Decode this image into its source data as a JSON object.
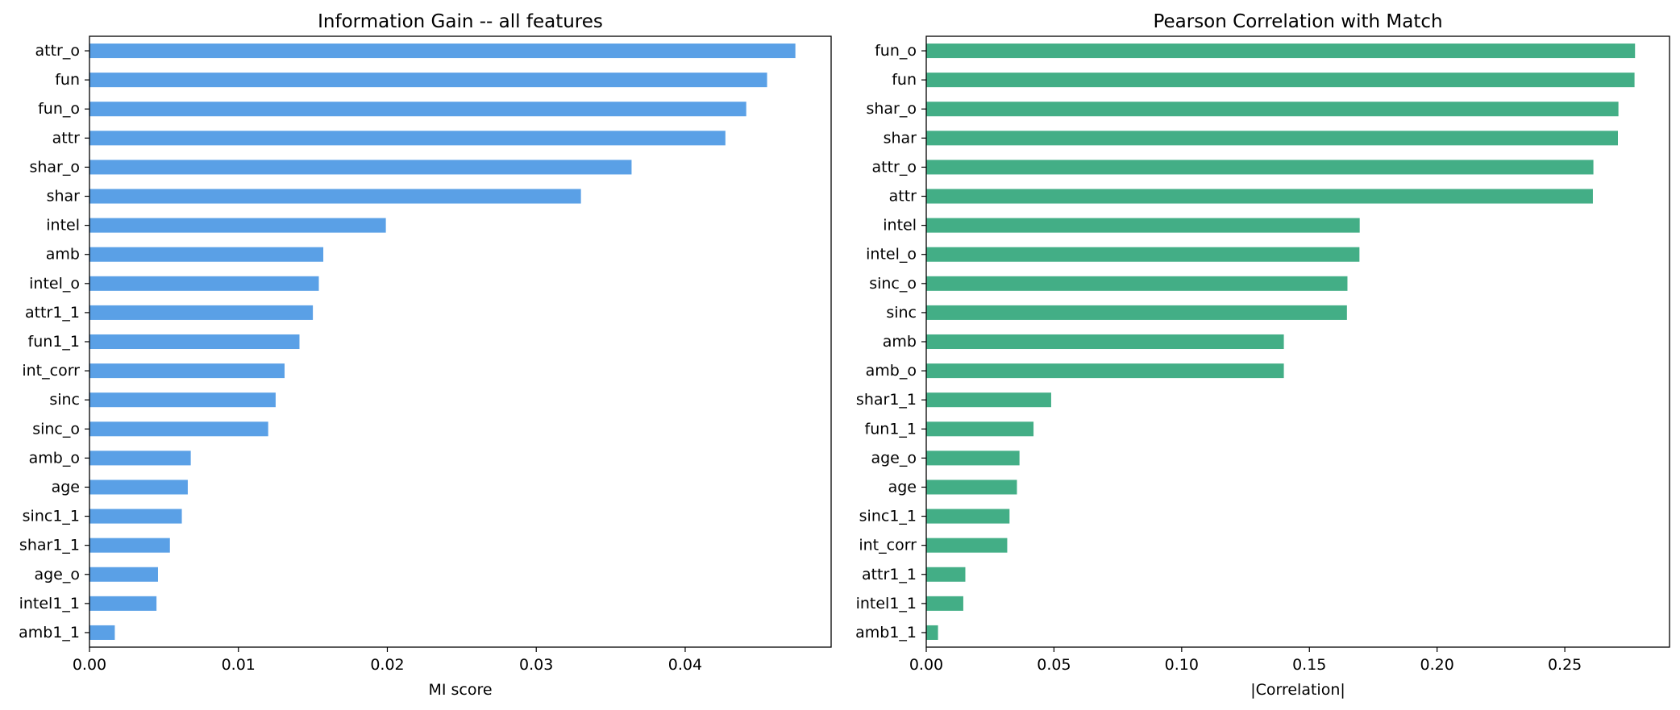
{
  "chart_data": [
    {
      "type": "bar",
      "orientation": "horizontal",
      "title": "Information Gain -- all features",
      "xlabel": "MI score",
      "ylabel": "",
      "color": "#5aa0e6",
      "xlim": [
        0,
        0.0498
      ],
      "xticks": [
        0.0,
        0.01,
        0.02,
        0.03,
        0.04
      ],
      "xtick_labels": [
        "0.00",
        "0.01",
        "0.02",
        "0.03",
        "0.04"
      ],
      "grid": false,
      "categories": [
        "attr_o",
        "fun",
        "fun_o",
        "attr",
        "shar_o",
        "shar",
        "intel",
        "amb",
        "intel_o",
        "attr1_1",
        "fun1_1",
        "int_corr",
        "sinc",
        "sinc_o",
        "amb_o",
        "age",
        "sinc1_1",
        "shar1_1",
        "age_o",
        "intel1_1",
        "amb1_1"
      ],
      "values": [
        0.0474,
        0.0455,
        0.0441,
        0.0427,
        0.0364,
        0.033,
        0.0199,
        0.0157,
        0.0154,
        0.015,
        0.0141,
        0.0131,
        0.0125,
        0.012,
        0.0068,
        0.0066,
        0.0062,
        0.0054,
        0.0046,
        0.0045,
        0.0017
      ]
    },
    {
      "type": "bar",
      "orientation": "horizontal",
      "title": "Pearson Correlation with Match",
      "xlabel": "|Correlation|",
      "ylabel": "",
      "color": "#43ae86",
      "xlim": [
        0,
        0.291
      ],
      "xticks": [
        0.0,
        0.05,
        0.1,
        0.15,
        0.2,
        0.25
      ],
      "xtick_labels": [
        "0.00",
        "0.05",
        "0.10",
        "0.15",
        "0.20",
        "0.25"
      ],
      "grid": false,
      "categories": [
        "fun_o",
        "fun",
        "shar_o",
        "shar",
        "attr_o",
        "attr",
        "intel",
        "intel_o",
        "sinc_o",
        "sinc",
        "amb",
        "amb_o",
        "shar1_1",
        "fun1_1",
        "age_o",
        "age",
        "sinc1_1",
        "int_corr",
        "attr1_1",
        "intel1_1",
        "amb1_1"
      ],
      "values": [
        0.2775,
        0.2773,
        0.271,
        0.2708,
        0.2612,
        0.261,
        0.1697,
        0.1696,
        0.1649,
        0.1647,
        0.14,
        0.14,
        0.0489,
        0.042,
        0.0365,
        0.0355,
        0.0326,
        0.0317,
        0.0153,
        0.0145,
        0.0046
      ]
    }
  ]
}
